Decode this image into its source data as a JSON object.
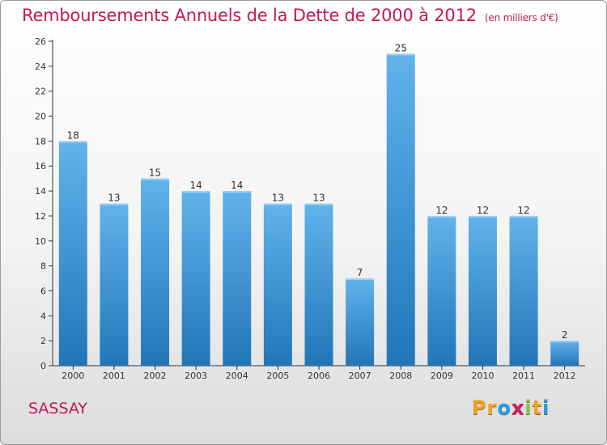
{
  "title": "Remboursements Annuels de la Dette de 2000 à 2012",
  "subtitle": "(en milliers d'€)",
  "commune": "SASSAY",
  "brand": {
    "letters": [
      "P",
      "r",
      "o",
      "x",
      "i",
      "t",
      "i"
    ],
    "colors": [
      "#f4a21d",
      "#f4a21d",
      "#2e9be0",
      "#d81b60",
      "#8bc34a",
      "#f4a21d",
      "#2e9be0"
    ]
  },
  "chart_data": {
    "type": "bar",
    "categories": [
      "2000",
      "2001",
      "2002",
      "2003",
      "2004",
      "2005",
      "2006",
      "2007",
      "2008",
      "2009",
      "2010",
      "2011",
      "2012"
    ],
    "values": [
      18,
      13,
      15,
      14,
      14,
      13,
      13,
      7,
      25,
      12,
      12,
      12,
      2
    ],
    "data_labels": [
      "18",
      "13",
      "15",
      "14",
      "14",
      "13",
      "13",
      "7",
      "25",
      "12",
      "12",
      "12",
      "2"
    ],
    "yticks": [
      "0",
      "2",
      "4",
      "6",
      "8",
      "10",
      "12",
      "14",
      "16",
      "18",
      "20",
      "22",
      "24",
      "26"
    ],
    "ylim": [
      0,
      26
    ],
    "grid": false,
    "colors": {
      "bar_top": "#62b3ec",
      "bar_bottom": "#2176b8",
      "axis": "#333333",
      "text": "#333333"
    }
  }
}
